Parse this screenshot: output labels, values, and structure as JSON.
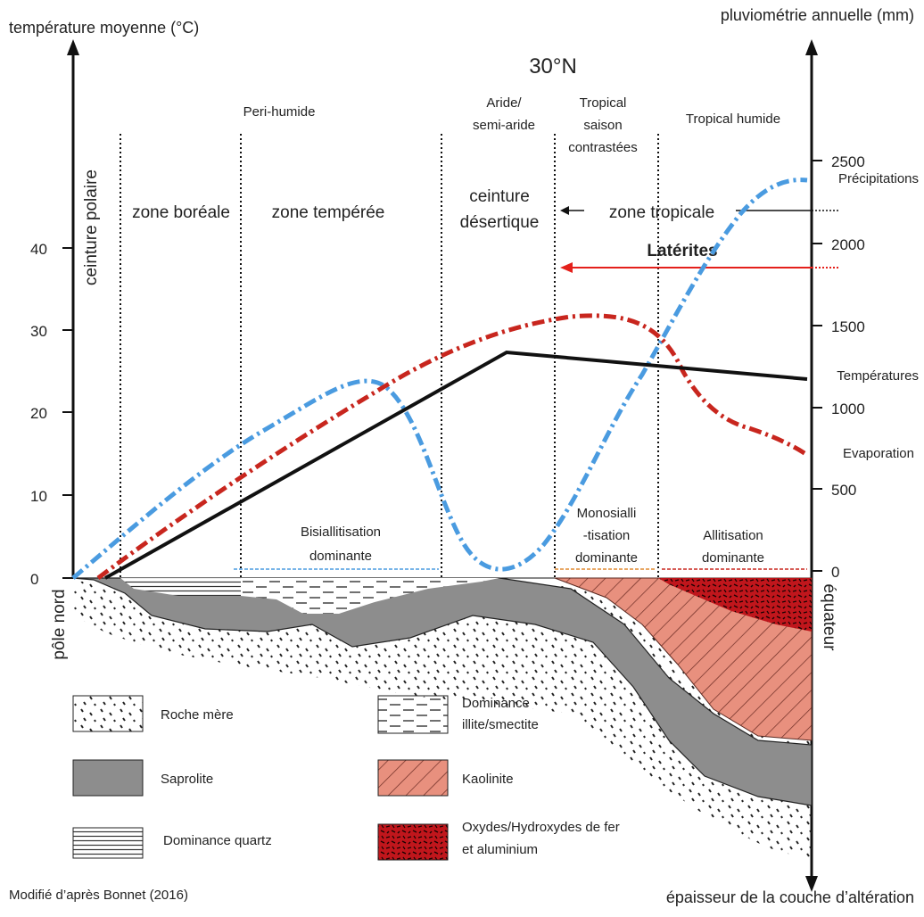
{
  "left_axis": {
    "title": "température moyenne (°C)",
    "ticks": [
      "0",
      "10",
      "20",
      "30",
      "40"
    ]
  },
  "right_axis": {
    "title": "pluviométrie annuelle (mm)",
    "ticks": [
      "0",
      "500",
      "1000",
      "1500",
      "2000",
      "2500"
    ],
    "bottom_title": "épaisseur de la couche d’altération"
  },
  "latitude_label": "30°N",
  "pole_label": "pôle nord",
  "equator_label": "équateur",
  "climate_labels": {
    "peri_humide": "Peri-humide",
    "aride_1": "Aride/",
    "aride_2": "semi-aride",
    "tropical_saison_1": "Tropical",
    "tropical_saison_2": "saison",
    "tropical_saison_3": "contrastées",
    "tropical_humide": "Tropical humide"
  },
  "zones": {
    "polaire": "ceinture polaire",
    "boreale": "zone boréale",
    "temperee": "zone tempérée",
    "desert_1": "ceinture",
    "desert_2": "désertique",
    "tropicale": "zone tropicale"
  },
  "laterites_label": "Latérites",
  "curve_labels": {
    "precipitations": "Précipitations",
    "temperatures": "Températures",
    "evaporation": "Evaporation"
  },
  "processes": {
    "bisiallitisation_1": "Bisiallitisation",
    "bisiallitisation_2": "dominante",
    "monosiallitisation_1": "Monosialli",
    "monosiallitisation_2": "-tisation",
    "monosiallitisation_3": "dominante",
    "allitisation_1": "Allitisation",
    "allitisation_2": "dominante"
  },
  "legend": {
    "roche_mere": "Roche mère",
    "saprolite": "Saprolite",
    "quartz": "Dominance quartz",
    "illite_1": "Dominance",
    "illite_2": "illite/smectite",
    "kaolinite": "Kaolinite",
    "oxydes_1": "Oxydes/Hydroxydes de fer",
    "oxydes_2": "et aluminium"
  },
  "colors": {
    "precipitation": "#4a9be0",
    "evaporation": "#c8261e",
    "temperature": "#111111",
    "kaolinite": "#e8907e",
    "oxides": "#c0161c",
    "saprolite": "#8d8d8d",
    "laterite_arrow": "#e4201b",
    "bisiallitisation_line": "#4a9be0",
    "monosiallitisation_line": "#e08a30",
    "allitisation_line": "#c8261e"
  },
  "source": "Modifié d’après Bonnet (2016)"
}
